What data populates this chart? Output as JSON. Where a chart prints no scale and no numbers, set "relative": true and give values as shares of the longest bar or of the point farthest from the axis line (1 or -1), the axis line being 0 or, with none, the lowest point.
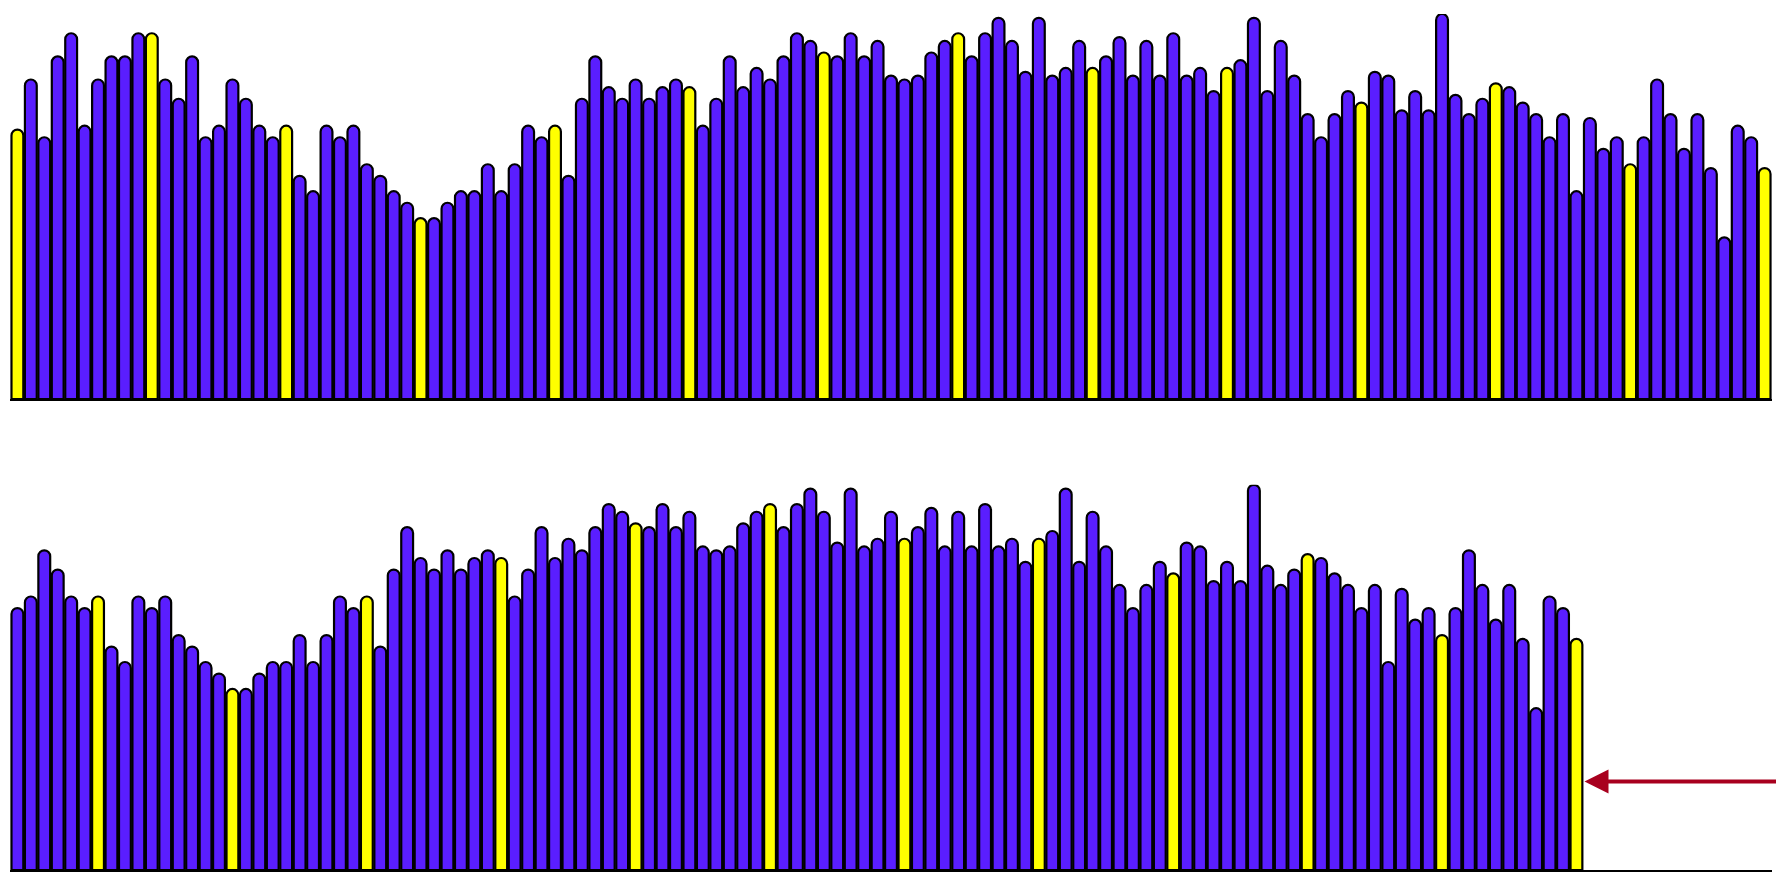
{
  "chart_data": [
    {
      "type": "bar",
      "relative": true,
      "categories": [
        null,
        null,
        null,
        null,
        null,
        null,
        null,
        null,
        null,
        null,
        null,
        null,
        null,
        null,
        null,
        null,
        null,
        null,
        null,
        null,
        null,
        null,
        null,
        null,
        null,
        null,
        null,
        null,
        null,
        null,
        null,
        null,
        null,
        null,
        null,
        null,
        null,
        null,
        null,
        null,
        null,
        null,
        null,
        null,
        null,
        null,
        null,
        null,
        null,
        null,
        null,
        null,
        null,
        null,
        null,
        null,
        null,
        null,
        null,
        null,
        null,
        null,
        null,
        null,
        null,
        null,
        null,
        null,
        null,
        null,
        null,
        null,
        null,
        null,
        null,
        null,
        null,
        null,
        null,
        null,
        null,
        null,
        null,
        null,
        null,
        null,
        null,
        null,
        null,
        null,
        null,
        null,
        null,
        null,
        null,
        null,
        null,
        null,
        null,
        null,
        null,
        null,
        null,
        null,
        null,
        null,
        null,
        null,
        null,
        null,
        null,
        null,
        null,
        null,
        null,
        null,
        null,
        null,
        null,
        null,
        null,
        null,
        null,
        null,
        null,
        null,
        null,
        null,
        null,
        null,
        null
      ],
      "values": [
        0.7,
        0.83,
        0.68,
        0.89,
        0.95,
        0.71,
        0.83,
        0.89,
        0.89,
        0.95,
        0.95,
        0.83,
        0.78,
        0.89,
        0.68,
        0.71,
        0.83,
        0.78,
        0.71,
        0.68,
        0.71,
        0.58,
        0.54,
        0.71,
        0.68,
        0.71,
        0.61,
        0.58,
        0.54,
        0.51,
        0.47,
        0.47,
        0.51,
        0.54,
        0.54,
        0.61,
        0.54,
        0.61,
        0.71,
        0.68,
        0.71,
        0.58,
        0.78,
        0.89,
        0.81,
        0.78,
        0.83,
        0.78,
        0.81,
        0.83,
        0.81,
        0.71,
        0.78,
        0.89,
        0.81,
        0.86,
        0.83,
        0.89,
        0.95,
        0.93,
        0.9,
        0.89,
        0.95,
        0.89,
        0.93,
        0.84,
        0.83,
        0.84,
        0.9,
        0.93,
        0.95,
        0.89,
        0.95,
        0.99,
        0.93,
        0.85,
        0.99,
        0.84,
        0.86,
        0.93,
        0.86,
        0.89,
        0.94,
        0.84,
        0.93,
        0.84,
        0.95,
        0.84,
        0.86,
        0.8,
        0.86,
        0.88,
        0.99,
        0.8,
        0.93,
        0.84,
        0.74,
        0.68,
        0.74,
        0.8,
        0.77,
        0.85,
        0.84,
        0.75,
        0.8,
        0.75,
        1,
        0.79,
        0.74,
        0.78,
        0.82,
        0.81,
        0.77,
        0.74,
        0.68,
        0.74,
        0.54,
        0.73,
        0.65,
        0.68,
        0.61,
        0.68,
        0.83,
        0.74,
        0.65,
        0.74,
        0.6,
        0.42,
        0.71,
        0.68,
        0.6
      ],
      "colors": [
        "#ffff00",
        "#5a1eff",
        "#5a1eff",
        "#5a1eff",
        "#5a1eff",
        "#5a1eff",
        "#5a1eff",
        "#5a1eff",
        "#5a1eff",
        "#5a1eff",
        "#ffff00",
        "#5a1eff",
        "#5a1eff",
        "#5a1eff",
        "#5a1eff",
        "#5a1eff",
        "#5a1eff",
        "#5a1eff",
        "#5a1eff",
        "#5a1eff",
        "#ffff00",
        "#5a1eff",
        "#5a1eff",
        "#5a1eff",
        "#5a1eff",
        "#5a1eff",
        "#5a1eff",
        "#5a1eff",
        "#5a1eff",
        "#5a1eff",
        "#ffff00",
        "#5a1eff",
        "#5a1eff",
        "#5a1eff",
        "#5a1eff",
        "#5a1eff",
        "#5a1eff",
        "#5a1eff",
        "#5a1eff",
        "#5a1eff",
        "#ffff00",
        "#5a1eff",
        "#5a1eff",
        "#5a1eff",
        "#5a1eff",
        "#5a1eff",
        "#5a1eff",
        "#5a1eff",
        "#5a1eff",
        "#5a1eff",
        "#ffff00",
        "#5a1eff",
        "#5a1eff",
        "#5a1eff",
        "#5a1eff",
        "#5a1eff",
        "#5a1eff",
        "#5a1eff",
        "#5a1eff",
        "#5a1eff",
        "#ffff00",
        "#5a1eff",
        "#5a1eff",
        "#5a1eff",
        "#5a1eff",
        "#5a1eff",
        "#5a1eff",
        "#5a1eff",
        "#5a1eff",
        "#5a1eff",
        "#ffff00",
        "#5a1eff",
        "#5a1eff",
        "#5a1eff",
        "#5a1eff",
        "#5a1eff",
        "#5a1eff",
        "#5a1eff",
        "#5a1eff",
        "#5a1eff",
        "#ffff00",
        "#5a1eff",
        "#5a1eff",
        "#5a1eff",
        "#5a1eff",
        "#5a1eff",
        "#5a1eff",
        "#5a1eff",
        "#5a1eff",
        "#5a1eff",
        "#ffff00",
        "#5a1eff",
        "#5a1eff",
        "#5a1eff",
        "#5a1eff",
        "#5a1eff",
        "#5a1eff",
        "#5a1eff",
        "#5a1eff",
        "#5a1eff",
        "#ffff00",
        "#5a1eff",
        "#5a1eff",
        "#5a1eff",
        "#5a1eff",
        "#5a1eff",
        "#5a1eff",
        "#5a1eff",
        "#5a1eff",
        "#5a1eff",
        "#ffff00",
        "#5a1eff",
        "#5a1eff",
        "#5a1eff",
        "#5a1eff",
        "#5a1eff",
        "#5a1eff",
        "#5a1eff",
        "#5a1eff",
        "#5a1eff",
        "#ffff00",
        "#5a1eff",
        "#5a1eff",
        "#5a1eff",
        "#5a1eff",
        "#5a1eff",
        "#5a1eff",
        "#5a1eff",
        "#5a1eff",
        "#5a1eff",
        "#ffff00"
      ]
    },
    {
      "type": "bar",
      "relative": true,
      "categories": [
        null,
        null,
        null,
        null,
        null,
        null,
        null,
        null,
        null,
        null,
        null,
        null,
        null,
        null,
        null,
        null,
        null,
        null,
        null,
        null,
        null,
        null,
        null,
        null,
        null,
        null,
        null,
        null,
        null,
        null,
        null,
        null,
        null,
        null,
        null,
        null,
        null,
        null,
        null,
        null,
        null,
        null,
        null,
        null,
        null,
        null,
        null,
        null,
        null,
        null,
        null,
        null,
        null,
        null,
        null,
        null,
        null,
        null,
        null,
        null,
        null,
        null,
        null,
        null,
        null,
        null,
        null,
        null,
        null,
        null,
        null,
        null,
        null,
        null,
        null,
        null,
        null,
        null,
        null,
        null,
        null,
        null,
        null,
        null,
        null,
        null,
        null,
        null,
        null,
        null,
        null,
        null,
        null,
        null,
        null,
        null,
        null,
        null,
        null,
        null,
        null,
        null,
        null,
        null,
        null,
        null,
        null,
        null,
        null,
        null,
        null,
        null,
        null,
        null,
        null,
        null,
        null
      ],
      "values": [
        0.68,
        0.71,
        0.83,
        0.78,
        0.71,
        0.68,
        0.71,
        0.58,
        0.54,
        0.71,
        0.68,
        0.71,
        0.61,
        0.58,
        0.54,
        0.51,
        0.47,
        0.47,
        0.51,
        0.54,
        0.54,
        0.61,
        0.54,
        0.61,
        0.71,
        0.68,
        0.71,
        0.58,
        0.78,
        0.89,
        0.81,
        0.78,
        0.83,
        0.78,
        0.81,
        0.83,
        0.81,
        0.71,
        0.78,
        0.89,
        0.81,
        0.86,
        0.83,
        0.89,
        0.95,
        0.93,
        0.9,
        0.89,
        0.95,
        0.89,
        0.93,
        0.84,
        0.83,
        0.84,
        0.9,
        0.93,
        0.95,
        0.89,
        0.95,
        0.99,
        0.93,
        0.85,
        0.99,
        0.84,
        0.86,
        0.93,
        0.86,
        0.89,
        0.94,
        0.84,
        0.93,
        0.84,
        0.95,
        0.84,
        0.86,
        0.8,
        0.86,
        0.88,
        0.99,
        0.8,
        0.93,
        0.84,
        0.74,
        0.68,
        0.74,
        0.8,
        0.77,
        0.85,
        0.84,
        0.75,
        0.8,
        0.75,
        1,
        0.79,
        0.74,
        0.78,
        0.82,
        0.81,
        0.77,
        0.74,
        0.68,
        0.74,
        0.54,
        0.73,
        0.65,
        0.68,
        0.61,
        0.68,
        0.83,
        0.74,
        0.65,
        0.74,
        0.6,
        0.42,
        0.71,
        0.68,
        0.6
      ],
      "colors": [
        "#5a1eff",
        "#5a1eff",
        "#5a1eff",
        "#5a1eff",
        "#5a1eff",
        "#5a1eff",
        "#ffff00",
        "#5a1eff",
        "#5a1eff",
        "#5a1eff",
        "#5a1eff",
        "#5a1eff",
        "#5a1eff",
        "#5a1eff",
        "#5a1eff",
        "#5a1eff",
        "#ffff00",
        "#5a1eff",
        "#5a1eff",
        "#5a1eff",
        "#5a1eff",
        "#5a1eff",
        "#5a1eff",
        "#5a1eff",
        "#5a1eff",
        "#5a1eff",
        "#ffff00",
        "#5a1eff",
        "#5a1eff",
        "#5a1eff",
        "#5a1eff",
        "#5a1eff",
        "#5a1eff",
        "#5a1eff",
        "#5a1eff",
        "#5a1eff",
        "#ffff00",
        "#5a1eff",
        "#5a1eff",
        "#5a1eff",
        "#5a1eff",
        "#5a1eff",
        "#5a1eff",
        "#5a1eff",
        "#5a1eff",
        "#5a1eff",
        "#ffff00",
        "#5a1eff",
        "#5a1eff",
        "#5a1eff",
        "#5a1eff",
        "#5a1eff",
        "#5a1eff",
        "#5a1eff",
        "#5a1eff",
        "#5a1eff",
        "#ffff00",
        "#5a1eff",
        "#5a1eff",
        "#5a1eff",
        "#5a1eff",
        "#5a1eff",
        "#5a1eff",
        "#5a1eff",
        "#5a1eff",
        "#5a1eff",
        "#ffff00",
        "#5a1eff",
        "#5a1eff",
        "#5a1eff",
        "#5a1eff",
        "#5a1eff",
        "#5a1eff",
        "#5a1eff",
        "#5a1eff",
        "#5a1eff",
        "#ffff00",
        "#5a1eff",
        "#5a1eff",
        "#5a1eff",
        "#5a1eff",
        "#5a1eff",
        "#5a1eff",
        "#5a1eff",
        "#5a1eff",
        "#5a1eff",
        "#ffff00",
        "#5a1eff",
        "#5a1eff",
        "#5a1eff",
        "#5a1eff",
        "#5a1eff",
        "#5a1eff",
        "#5a1eff",
        "#5a1eff",
        "#5a1eff",
        "#ffff00",
        "#5a1eff",
        "#5a1eff",
        "#5a1eff",
        "#5a1eff",
        "#5a1eff",
        "#5a1eff",
        "#5a1eff",
        "#5a1eff",
        "#5a1eff",
        "#ffff00",
        "#5a1eff",
        "#5a1eff",
        "#5a1eff",
        "#5a1eff",
        "#5a1eff",
        "#5a1eff",
        "#5a1eff",
        "#5a1eff",
        "#5a1eff",
        "#ffff00"
      ]
    }
  ]
}
